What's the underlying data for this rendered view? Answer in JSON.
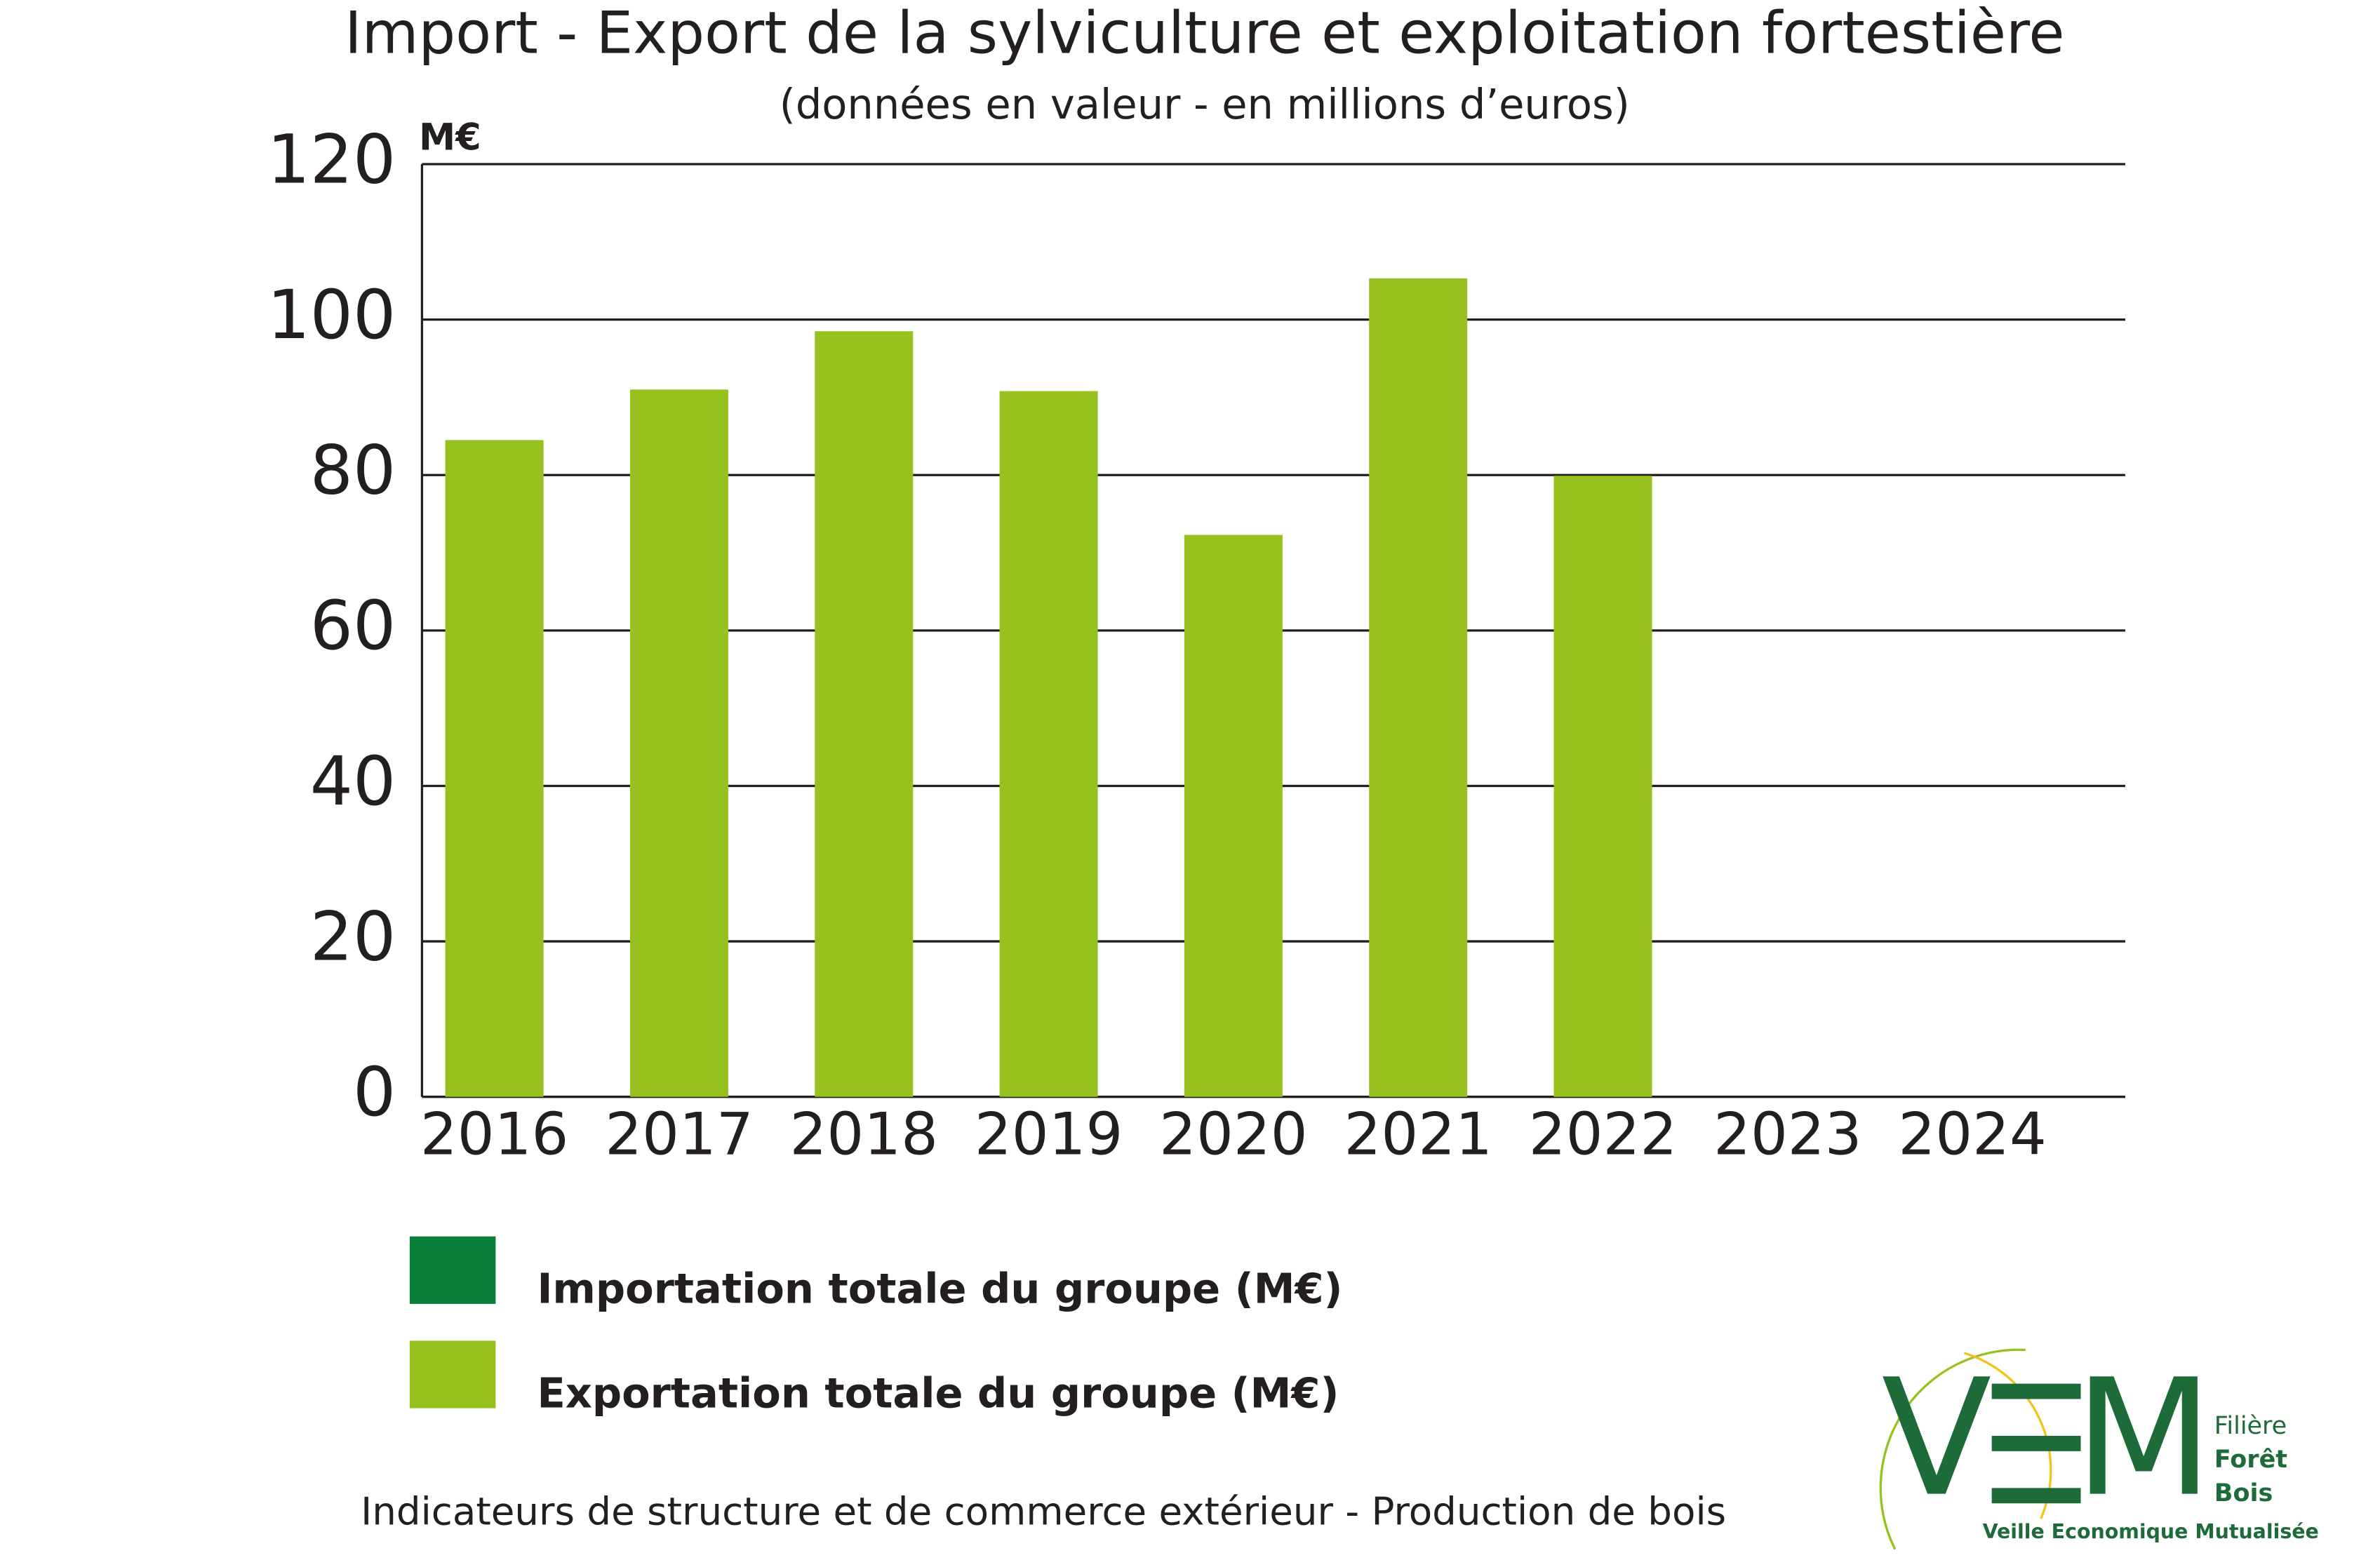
{
  "chart_data": {
    "type": "bar",
    "title": "Import - Export de la sylviculture et exploitation fortestière",
    "subtitle": "(données en valeur - en millions d’euros)",
    "y_unit": "M€",
    "categories": [
      "2016",
      "2017",
      "2018",
      "2019",
      "2020",
      "2021",
      "2022",
      "2023",
      "2024"
    ],
    "series": [
      {
        "name": "Importation totale du groupe (M€)",
        "color": "#0a7f3a",
        "values": [
          null,
          null,
          null,
          null,
          null,
          null,
          null,
          null,
          null
        ]
      },
      {
        "name": "Exportation totale du groupe (M€)",
        "color": "#97c11f",
        "values": [
          84.5,
          91,
          98.5,
          90.8,
          72.3,
          105.3,
          79.9,
          null,
          null
        ]
      }
    ],
    "ylim": [
      0,
      120
    ],
    "yticks": [
      0,
      20,
      40,
      60,
      80,
      100,
      120
    ],
    "grid": true
  },
  "footer": "Indicateurs de structure et de commerce extérieur - Production de bois",
  "logo": {
    "left": "V",
    "right": "M",
    "lines": [
      "Filière",
      "Forêt",
      "Bois"
    ],
    "tagline": "Veille Economique Mutualisée"
  }
}
